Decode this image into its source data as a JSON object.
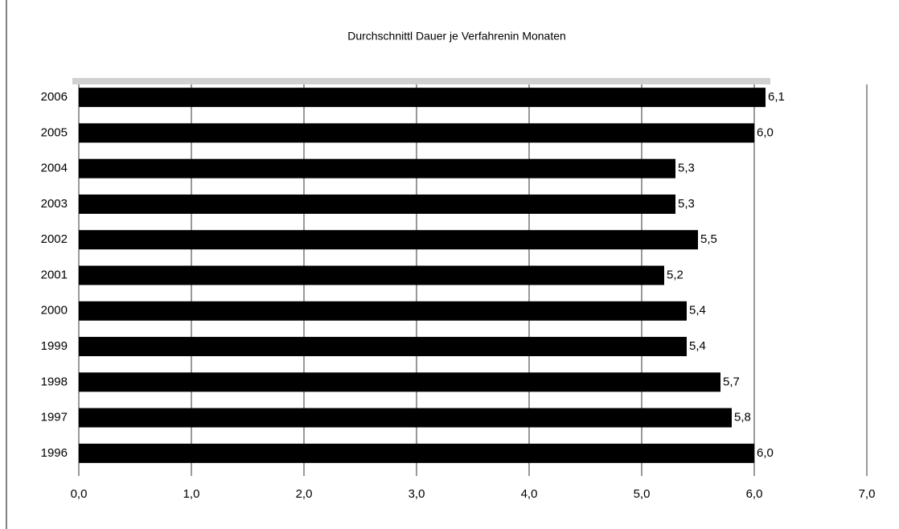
{
  "chart_data": {
    "type": "bar",
    "orientation": "horizontal",
    "title": "Durchschnittl Dauer je Verfahrenin Monaten",
    "categories": [
      "2006",
      "2005",
      "2004",
      "2003",
      "2002",
      "2001",
      "2000",
      "1999",
      "1998",
      "1997",
      "1996"
    ],
    "values": [
      6.1,
      6.0,
      5.3,
      5.3,
      5.5,
      5.2,
      5.4,
      5.4,
      5.7,
      5.8,
      6.0
    ],
    "value_labels": [
      "6,1",
      "6,0",
      "5,3",
      "5,3",
      "5,5",
      "5,2",
      "5,4",
      "5,4",
      "5,7",
      "5,8",
      "6,0"
    ],
    "color": "#000000",
    "xlim": [
      0,
      7
    ],
    "xticks": [
      {
        "value": 0,
        "label": "0,0"
      },
      {
        "value": 1,
        "label": "1,0"
      },
      {
        "value": 2,
        "label": "2,0"
      },
      {
        "value": 3,
        "label": "3,0"
      },
      {
        "value": 4,
        "label": "4,0"
      },
      {
        "value": 5,
        "label": "5,0"
      },
      {
        "value": 6,
        "label": "6,0"
      },
      {
        "value": 7,
        "label": "7,0"
      }
    ],
    "grid": true
  }
}
